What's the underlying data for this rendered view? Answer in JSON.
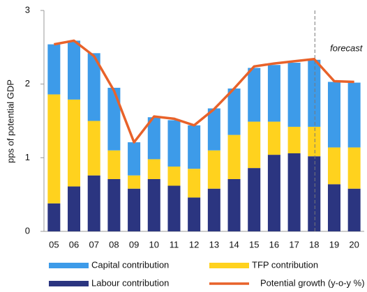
{
  "chart_data": {
    "type": "bar",
    "stacked": true,
    "y_label": "pps of potential GDP",
    "annotation": "forecast",
    "forecast_after_index": 12,
    "categories": [
      "05",
      "06",
      "07",
      "08",
      "09",
      "10",
      "11",
      "12",
      "13",
      "14",
      "15",
      "16",
      "17",
      "18",
      "19",
      "20"
    ],
    "series": [
      {
        "name": "Labour contribution",
        "color": "#2b3580",
        "values": [
          0.38,
          0.61,
          0.76,
          0.71,
          0.58,
          0.71,
          0.62,
          0.46,
          0.58,
          0.71,
          0.86,
          1.04,
          1.06,
          1.02,
          0.64,
          0.58
        ]
      },
      {
        "name": "TFP contribution",
        "color": "#ffd21e",
        "values": [
          1.48,
          1.18,
          0.74,
          0.39,
          0.18,
          0.27,
          0.26,
          0.39,
          0.52,
          0.6,
          0.63,
          0.45,
          0.36,
          0.4,
          0.5,
          0.56
        ]
      },
      {
        "name": "Capital contribution",
        "color": "#3d9be9",
        "values": [
          0.68,
          0.8,
          0.92,
          0.85,
          0.45,
          0.57,
          0.63,
          0.59,
          0.57,
          0.63,
          0.73,
          0.77,
          0.87,
          0.91,
          0.89,
          0.88
        ]
      },
      {
        "name": "Potential growth (y-o-y %)",
        "color": "#e8622a",
        "type": "line",
        "values": [
          2.54,
          2.59,
          2.38,
          1.91,
          1.21,
          1.56,
          1.53,
          1.44,
          1.66,
          1.94,
          2.24,
          2.28,
          2.31,
          2.34,
          2.04,
          2.03
        ]
      }
    ],
    "ylim": [
      0,
      3
    ],
    "yticks": [
      0,
      1,
      2,
      3
    ]
  }
}
